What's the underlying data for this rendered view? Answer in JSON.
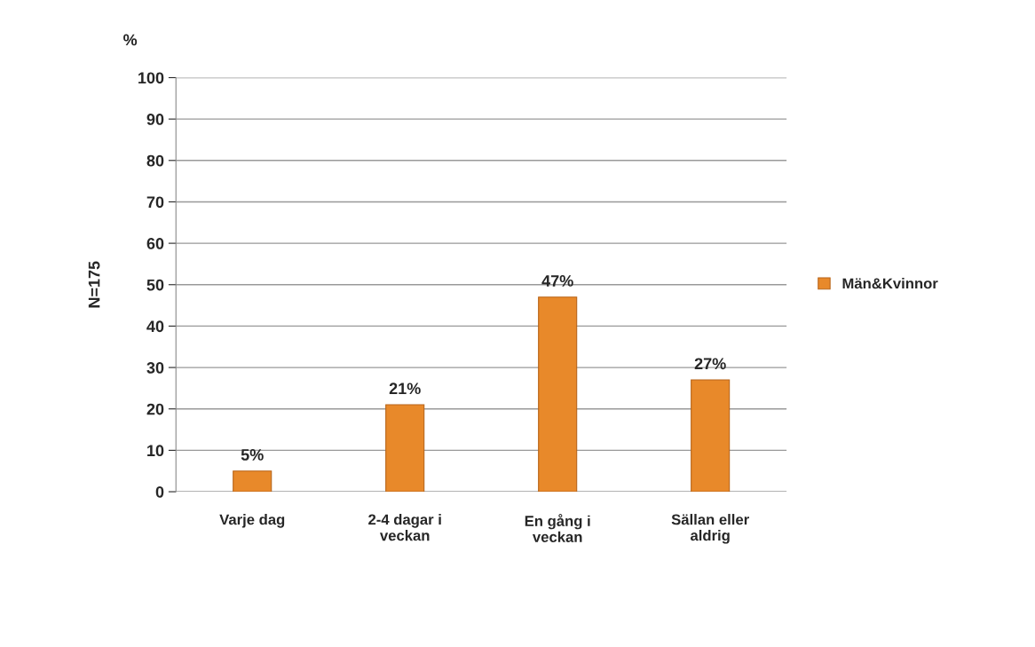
{
  "chart_data": {
    "type": "bar",
    "categories": [
      "Varje dag",
      "2-4 dagar i\nveckan",
      "En gång i\nveckan",
      "Sällan eller\naldrig"
    ],
    "series": [
      {
        "name": "Män&Kvinnor",
        "color": "#e8892a",
        "values": [
          5,
          21,
          47,
          27
        ]
      }
    ],
    "value_labels": [
      "5%",
      "21%",
      "47%",
      "27%"
    ],
    "ylabel": "N=175",
    "annotations": [
      "%"
    ],
    "ylim": [
      0,
      100
    ],
    "yticks": [
      0,
      10,
      20,
      30,
      40,
      50,
      60,
      70,
      80,
      90,
      100
    ],
    "grid": "y",
    "legend": "right"
  }
}
